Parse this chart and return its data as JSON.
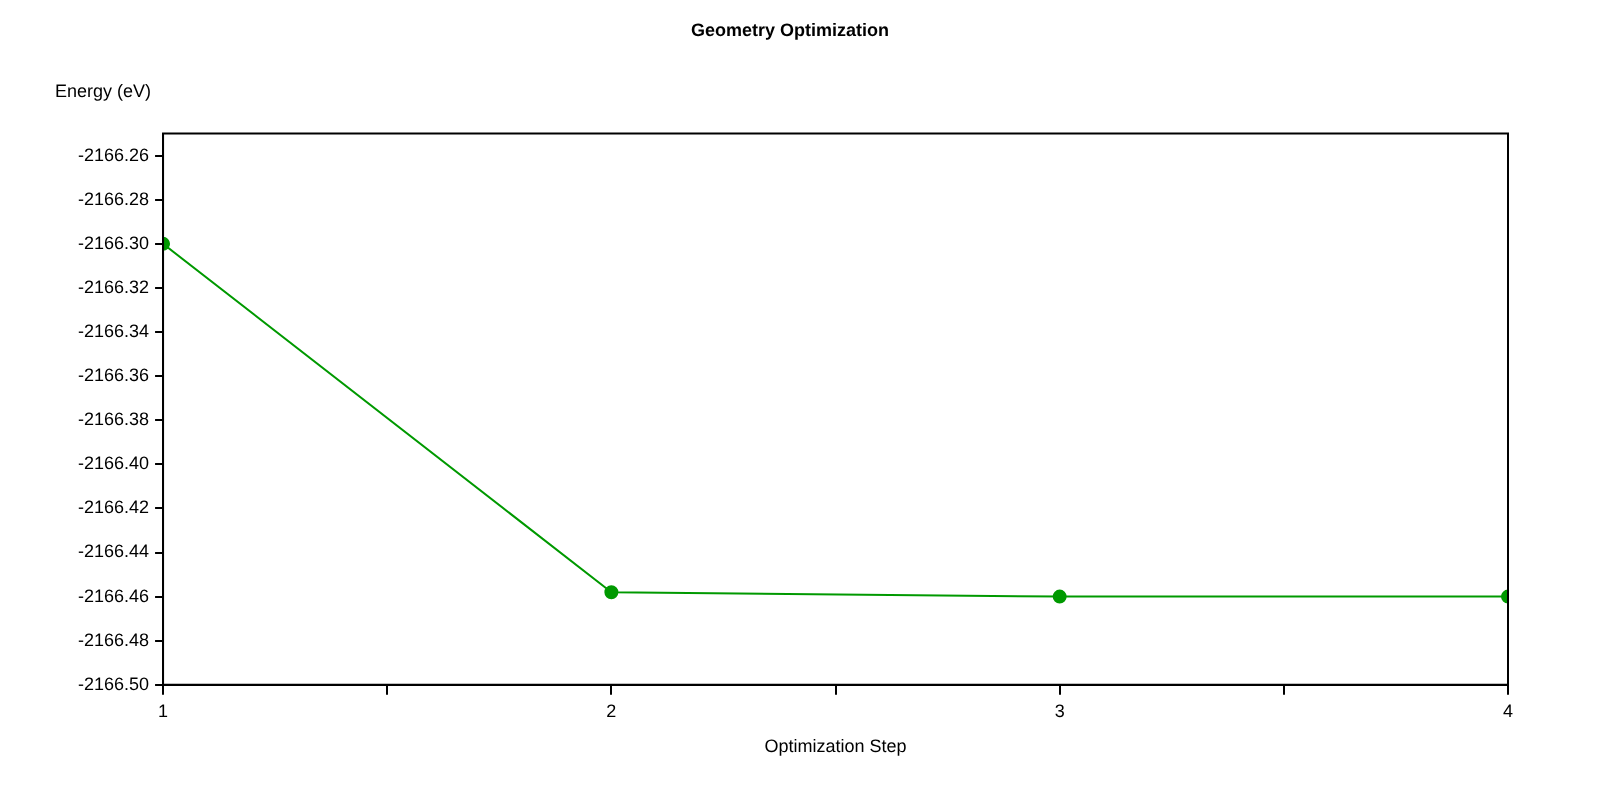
{
  "chart_data": {
    "type": "line",
    "title": "Geometry Optimization",
    "xlabel": "Optimization Step",
    "ylabel": "Energy (eV)",
    "x": [
      1,
      2,
      3,
      4
    ],
    "series": [
      {
        "color": "#009900",
        "values": [
          -2166.3,
          -2166.458,
          -2166.46,
          -2166.46
        ]
      }
    ],
    "xlim": [
      1,
      4
    ],
    "xticks": [
      1,
      {
        "value": 1.5,
        "label": null
      },
      2,
      {
        "value": 2.5,
        "label": null
      },
      3,
      {
        "value": 3.5,
        "label": null
      },
      4
    ],
    "ylim": [
      -2166.5,
      -2166.25
    ],
    "yticks": [
      -2166.26,
      -2166.28,
      {
        "value": -2166.3,
        "label": "-2166.30"
      },
      -2166.32,
      -2166.34,
      -2166.36,
      -2166.38,
      {
        "value": -2166.4,
        "label": "-2166.40"
      },
      -2166.42,
      -2166.44,
      -2166.46,
      -2166.48,
      {
        "value": -2166.5,
        "label": "-2166.50"
      }
    ],
    "marker": "circle",
    "line_style": "solid",
    "grid": false,
    "legend": false
  }
}
